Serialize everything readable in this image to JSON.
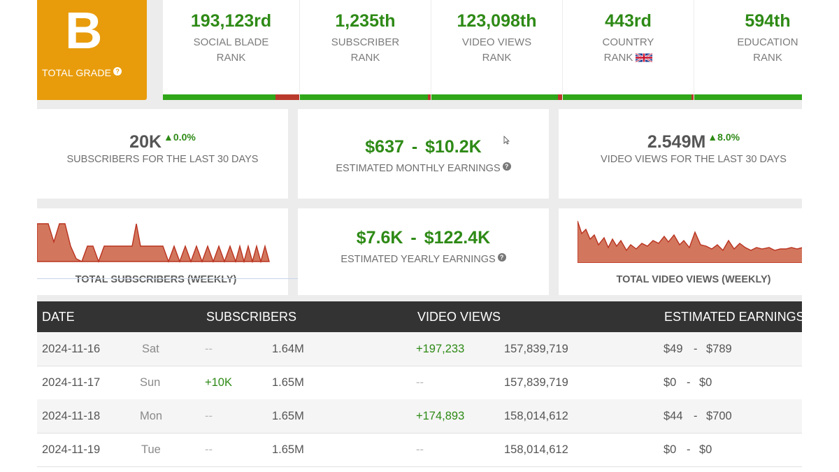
{
  "grade": {
    "letter": "B",
    "label": "TOTAL GRADE",
    "help_icon": "question-icon"
  },
  "ranks": [
    {
      "value": "193,123rd",
      "label_line1": "SOCIAL BLADE",
      "label_line2": "RANK"
    },
    {
      "value": "1,235th",
      "label_line1": "SUBSCRIBER",
      "label_line2": "RANK"
    },
    {
      "value": "123,098th",
      "label_line1": "VIDEO VIEWS",
      "label_line2": "RANK"
    },
    {
      "value": "443rd",
      "label_line1": "COUNTRY",
      "label_line2": "RANK",
      "flag_icon": "uk-flag-icon"
    },
    {
      "value": "594th",
      "label_line1": "EDUCATION",
      "label_line2": "RANK"
    }
  ],
  "stats": {
    "subscribers_30d": {
      "value": "20K",
      "change": "0.0%",
      "label": "SUBSCRIBERS FOR THE LAST 30 DAYS"
    },
    "monthly_earnings": {
      "value": "$637  -  $10.2K",
      "label": "ESTIMATED MONTHLY EARNINGS"
    },
    "views_30d": {
      "value": "2.549M",
      "change": "8.0%",
      "label": "VIDEO VIEWS FOR THE LAST 30 DAYS"
    },
    "yearly_earnings": {
      "value": "$7.6K  -  $122.4K",
      "label": "ESTIMATED YEARLY EARNINGS"
    }
  },
  "charts": {
    "subscribers_weekly": {
      "caption": "TOTAL SUBSCRIBERS (WEEKLY)"
    },
    "views_weekly": {
      "caption": "TOTAL VIDEO VIEWS (WEEKLY)"
    }
  },
  "table": {
    "headers": {
      "date": "DATE",
      "subscribers": "SUBSCRIBERS",
      "video_views": "VIDEO VIEWS",
      "earnings": "ESTIMATED EARNINGS"
    },
    "rows": [
      {
        "date": "2024-11-16",
        "day": "Sat",
        "sub_change": "--",
        "subs": "1.64M",
        "views_change": "+197,233",
        "views": "157,839,719",
        "earn_low": "$49",
        "earn_sep": "-",
        "earn_high": "$789"
      },
      {
        "date": "2024-11-17",
        "day": "Sun",
        "sub_change": "+10K",
        "subs": "1.65M",
        "views_change": "--",
        "views": "157,839,719",
        "earn_low": "$0",
        "earn_sep": "-",
        "earn_high": "$0"
      },
      {
        "date": "2024-11-18",
        "day": "Mon",
        "sub_change": "--",
        "subs": "1.65M",
        "views_change": "+174,893",
        "views": "158,014,612",
        "earn_low": "$44",
        "earn_sep": "-",
        "earn_high": "$700"
      },
      {
        "date": "2024-11-19",
        "day": "Tue",
        "sub_change": "--",
        "subs": "1.65M",
        "views_change": "--",
        "views": "158,014,612",
        "earn_low": "$0",
        "earn_sep": "-",
        "earn_high": "$0"
      }
    ]
  },
  "colors": {
    "grade_orange": "#e89c0c",
    "green": "#2e8a16",
    "bar_green": "#2fa719",
    "bar_red": "#b93a2c",
    "chart_fill": "#d2775e",
    "chart_line": "#b9321f",
    "header_dark": "#333333"
  }
}
